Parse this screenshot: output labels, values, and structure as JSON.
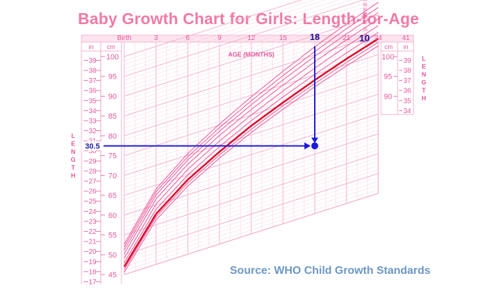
{
  "title": "Baby Growth Chart for Girls: Length-for-Age",
  "source": "Source: WHO Child Growth Standards",
  "chart_data": {
    "type": "line",
    "title": "Baby Growth Chart for Girls: Length-for-Age",
    "xlabel": "AGE (MONTHS)",
    "ylabel": "LENGTH",
    "xlim": [
      0,
      24
    ],
    "x_ticks": [
      "Birth",
      "3",
      "6",
      "9",
      "12",
      "15",
      "18",
      "21",
      "24"
    ],
    "top_right_label": "41",
    "y_cm_left": [
      45,
      50,
      55,
      60,
      65,
      70,
      75,
      80,
      85,
      90,
      95,
      100
    ],
    "y_in_left": [
      17,
      18,
      19,
      20,
      21,
      22,
      23,
      24,
      25,
      26,
      27,
      28,
      29,
      30,
      31,
      32,
      33,
      34,
      35,
      36,
      37,
      38,
      39
    ],
    "y_cm_right": [
      90,
      95,
      100
    ],
    "y_in_right": [
      34,
      35,
      36,
      37,
      38,
      39
    ],
    "unit_cm": "cm",
    "unit_in": "in",
    "percentiles": [
      "98",
      "95",
      "90",
      "75",
      "50",
      "25",
      "10",
      "5",
      "2"
    ],
    "highlight_label": "10",
    "highlight_percentile": "10",
    "series": [
      {
        "name": "98",
        "x": [
          0,
          3,
          6,
          9,
          12,
          15,
          18,
          21,
          24
        ],
        "y": [
          52.7,
          64.0,
          70.4,
          75.3,
          79.6,
          83.5,
          87.1,
          90.3,
          93.2
        ]
      },
      {
        "name": "95",
        "x": [
          0,
          3,
          6,
          9,
          12,
          15,
          18,
          21,
          24
        ],
        "y": [
          52.0,
          63.3,
          69.6,
          74.4,
          78.6,
          82.4,
          85.9,
          89.1,
          91.9
        ]
      },
      {
        "name": "90",
        "x": [
          0,
          3,
          6,
          9,
          12,
          15,
          18,
          21,
          24
        ],
        "y": [
          51.2,
          62.5,
          68.8,
          73.5,
          77.6,
          81.3,
          84.7,
          87.8,
          90.6
        ]
      },
      {
        "name": "75",
        "x": [
          0,
          3,
          6,
          9,
          12,
          15,
          18,
          21,
          24
        ],
        "y": [
          50.3,
          61.5,
          67.7,
          72.4,
          76.4,
          80.0,
          83.3,
          86.3,
          89.0
        ]
      },
      {
        "name": "50",
        "x": [
          0,
          3,
          6,
          9,
          12,
          15,
          18,
          21,
          24
        ],
        "y": [
          49.1,
          60.2,
          66.4,
          71.0,
          75.0,
          78.5,
          81.7,
          84.7,
          87.3
        ]
      },
      {
        "name": "25",
        "x": [
          0,
          3,
          6,
          9,
          12,
          15,
          18,
          21,
          24
        ],
        "y": [
          48.0,
          58.9,
          65.0,
          69.6,
          73.6,
          77.0,
          80.1,
          83.0,
          85.6
        ]
      },
      {
        "name": "10",
        "x": [
          0,
          3,
          6,
          9,
          12,
          15,
          18,
          21,
          24
        ],
        "y": [
          47.0,
          57.7,
          63.8,
          68.3,
          72.3,
          75.6,
          78.7,
          81.5,
          84.0
        ]
      },
      {
        "name": "5",
        "x": [
          0,
          3,
          6,
          9,
          12,
          15,
          18,
          21,
          24
        ],
        "y": [
          46.3,
          57.0,
          63.0,
          67.5,
          71.4,
          74.8,
          77.8,
          80.6,
          83.1
        ]
      },
      {
        "name": "2",
        "x": [
          0,
          3,
          6,
          9,
          12,
          15,
          18,
          21,
          24
        ],
        "y": [
          45.6,
          56.2,
          62.2,
          66.7,
          70.6,
          73.9,
          77.0,
          79.7,
          82.2
        ]
      }
    ],
    "annotation": {
      "age_months": 18,
      "length_in": 30.5,
      "x_label": "18",
      "y_label": "30.5"
    },
    "colors": {
      "grid": "#f6b3cf",
      "curve": "#ee5f9d",
      "highlight": "#dd0f2c",
      "axis_text": "#e8569a",
      "annotation": "#1a1adb"
    }
  }
}
